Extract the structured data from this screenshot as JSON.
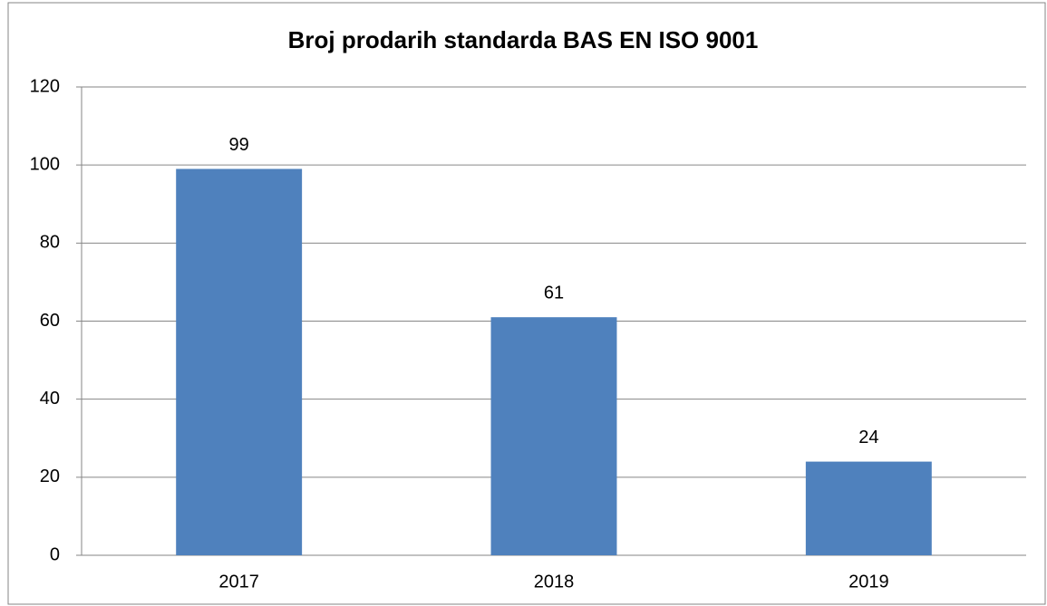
{
  "chart_data": {
    "type": "bar",
    "title": "Broj prodarih standarda BAS EN ISO 9001",
    "categories": [
      "2017",
      "2018",
      "2019"
    ],
    "values": [
      99,
      61,
      24
    ],
    "color": "#4f81bd",
    "ylim": [
      0,
      120
    ],
    "yticks": [
      0,
      20,
      40,
      60,
      80,
      100,
      120
    ],
    "grid": true
  }
}
